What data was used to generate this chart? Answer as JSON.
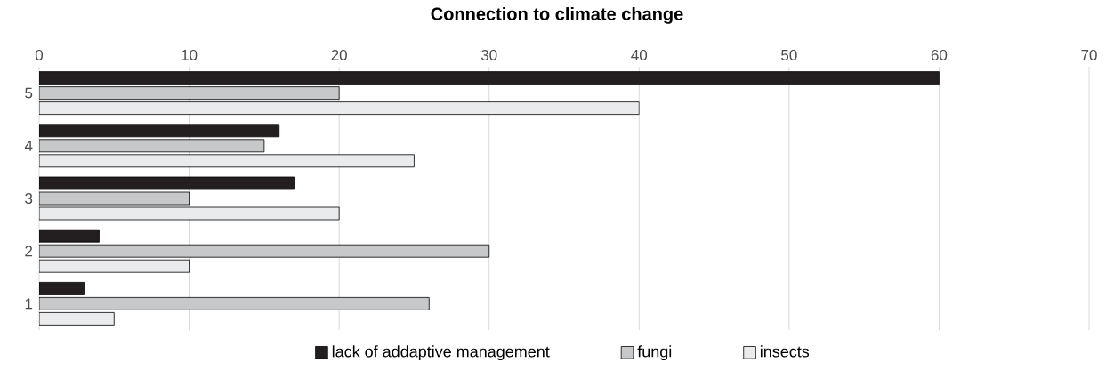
{
  "chart_data": {
    "type": "bar",
    "orientation": "horizontal",
    "title": "Connection to climate change",
    "categories": [
      "5",
      "4",
      "3",
      "2",
      "1"
    ],
    "series": [
      {
        "name": "lack of addaptive management",
        "color": "#231f20",
        "values": [
          60,
          16,
          17,
          4,
          3
        ]
      },
      {
        "name": "fungi",
        "color": "#c7c8ca",
        "values": [
          20,
          15,
          10,
          30,
          26
        ]
      },
      {
        "name": "insects",
        "color": "#e9ebed",
        "values": [
          40,
          25,
          20,
          10,
          5
        ]
      }
    ],
    "xlim": [
      0,
      70
    ],
    "xticks": [
      0,
      10,
      20,
      30,
      40,
      50,
      60,
      70
    ],
    "grid": "x",
    "legend": "bottom"
  }
}
